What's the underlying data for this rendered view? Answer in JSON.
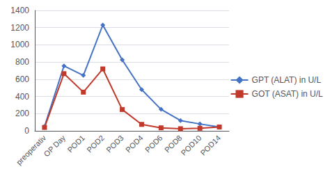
{
  "chart_data": {
    "type": "line",
    "categories": [
      "preoperativ",
      "OP Day",
      "POD1",
      "POD2",
      "POD3",
      "POD4",
      "POD6",
      "POD8",
      "POD10",
      "POD14"
    ],
    "series": [
      {
        "name": "GPT (ALAT) in U/L",
        "color": "#4472C4",
        "marker": "diamond",
        "values": [
          50,
          755,
          645,
          1230,
          825,
          480,
          250,
          120,
          80,
          45
        ]
      },
      {
        "name": "GOT (ASAT) in U/L",
        "color": "#C0392B",
        "marker": "square",
        "values": [
          40,
          665,
          450,
          720,
          248,
          75,
          35,
          25,
          30,
          45
        ]
      }
    ],
    "ylim": [
      0,
      1400
    ],
    "yticks": [
      0,
      200,
      400,
      600,
      800,
      1000,
      1200,
      1400
    ],
    "grid": true,
    "legend": "right"
  }
}
